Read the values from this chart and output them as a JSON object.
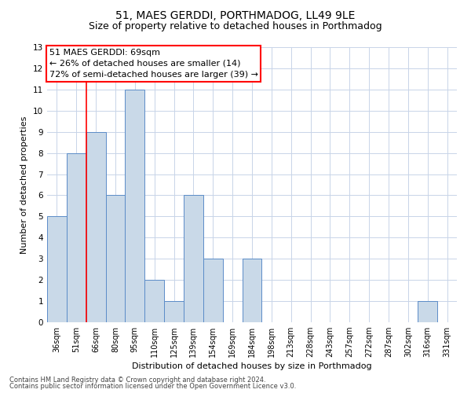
{
  "title1": "51, MAES GERDDI, PORTHMADOG, LL49 9LE",
  "title2": "Size of property relative to detached houses in Porthmadog",
  "xlabel": "Distribution of detached houses by size in Porthmadog",
  "ylabel": "Number of detached properties",
  "categories": [
    "36sqm",
    "51sqm",
    "66sqm",
    "80sqm",
    "95sqm",
    "110sqm",
    "125sqm",
    "139sqm",
    "154sqm",
    "169sqm",
    "184sqm",
    "198sqm",
    "213sqm",
    "228sqm",
    "243sqm",
    "257sqm",
    "272sqm",
    "287sqm",
    "302sqm",
    "316sqm",
    "331sqm"
  ],
  "values": [
    5,
    8,
    9,
    6,
    11,
    2,
    1,
    6,
    3,
    0,
    3,
    0,
    0,
    0,
    0,
    0,
    0,
    0,
    0,
    1,
    0
  ],
  "bar_color": "#c9d9e8",
  "bar_edge_color": "#5b8cc8",
  "red_line_x": 1.5,
  "annotation_text": "51 MAES GERDDI: 69sqm\n← 26% of detached houses are smaller (14)\n72% of semi-detached houses are larger (39) →",
  "annotation_box_color": "white",
  "annotation_box_edge": "red",
  "ylim": [
    0,
    13
  ],
  "yticks": [
    0,
    1,
    2,
    3,
    4,
    5,
    6,
    7,
    8,
    9,
    10,
    11,
    12,
    13
  ],
  "footnote1": "Contains HM Land Registry data © Crown copyright and database right 2024.",
  "footnote2": "Contains public sector information licensed under the Open Government Licence v3.0.",
  "background_color": "#ffffff",
  "grid_color": "#c8d4e8",
  "title1_fontsize": 10,
  "title2_fontsize": 9,
  "axis_label_fontsize": 8,
  "tick_fontsize": 7,
  "annotation_fontsize": 8
}
